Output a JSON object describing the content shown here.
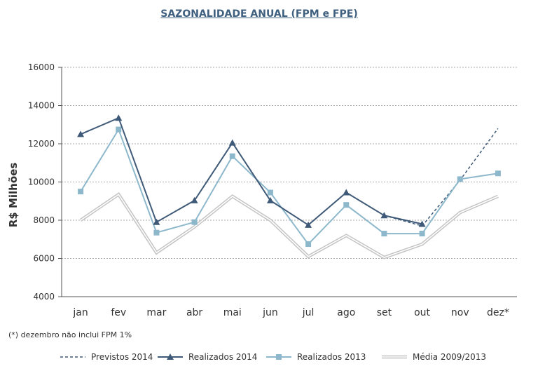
{
  "chart_data": {
    "type": "line",
    "title": "SAZONALIDADE ANUAL (FPM e FPE)",
    "ylabel": "R$ Milhões",
    "xlabel": "",
    "ylim": [
      4000,
      16000
    ],
    "yticks": [
      "4000",
      "6000",
      "8000",
      "10000",
      "12000",
      "14000",
      "16000"
    ],
    "categories": [
      "jan",
      "fev",
      "mar",
      "abr",
      "mai",
      "jun",
      "jul",
      "ago",
      "set",
      "out",
      "nov",
      "dez*"
    ],
    "grid": true,
    "legend_position": "bottom",
    "note": "(*) dezembro não inclui FPM 1%",
    "series": [
      {
        "name": "Previstos 2014",
        "style": "dashed",
        "color": "#3f5a78",
        "values": [
          null,
          null,
          null,
          null,
          null,
          null,
          null,
          null,
          8250,
          7700,
          10100,
          12800
        ]
      },
      {
        "name": "Realizados 2014",
        "style": "triangle",
        "color": "#3f5a78",
        "values": [
          12500,
          13350,
          7900,
          9030,
          12050,
          9030,
          7750,
          9450,
          8250,
          7800,
          null,
          null
        ]
      },
      {
        "name": "Realizados 2013",
        "style": "square",
        "color": "#8db8cc",
        "values": [
          9500,
          12750,
          7350,
          7900,
          11350,
          9450,
          6750,
          8800,
          7300,
          7300,
          10150,
          10450
        ]
      },
      {
        "name": "Média 2009/2013",
        "style": "double",
        "color": "#c8c8c8",
        "values": [
          8000,
          9350,
          6300,
          7650,
          9250,
          8000,
          6100,
          7200,
          6050,
          6750,
          8400,
          9250
        ]
      }
    ]
  }
}
